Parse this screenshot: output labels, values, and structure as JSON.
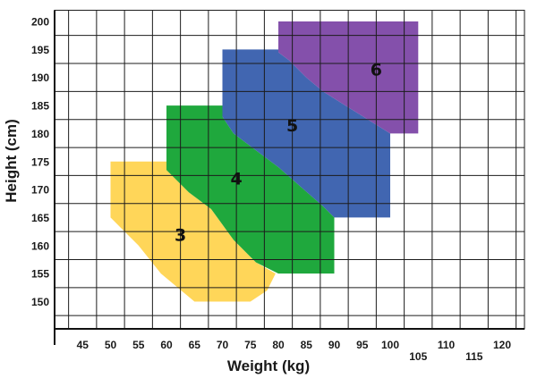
{
  "chart_data": {
    "type": "area",
    "title": "",
    "xlabel": "Weight (kg)",
    "ylabel": "Height (cm)",
    "xlim": [
      40,
      122.5
    ],
    "ylim": [
      145,
      202
    ],
    "grid": true,
    "x_ticks": [
      "45",
      "50",
      "55",
      "60",
      "65",
      "70",
      "75",
      "80",
      "85",
      "90",
      "95",
      "100",
      "105",
      "110",
      "115",
      "120"
    ],
    "y_ticks": [
      "150",
      "155",
      "160",
      "165",
      "170",
      "175",
      "180",
      "185",
      "190",
      "195",
      "200"
    ],
    "zones": [
      {
        "label": "3",
        "color": "#FFD659",
        "points": [
          [
            50,
            175
          ],
          [
            60,
            175
          ],
          [
            60,
            173.5
          ],
          [
            64,
            169.5
          ],
          [
            68,
            166.5
          ],
          [
            72,
            161
          ],
          [
            76,
            157
          ],
          [
            79.5,
            155
          ],
          [
            78,
            152
          ],
          [
            75,
            150
          ],
          [
            65,
            150
          ],
          [
            59,
            155
          ],
          [
            55,
            160
          ],
          [
            50,
            165
          ]
        ]
      },
      {
        "label": "4",
        "color": "#1FA83D",
        "points": [
          [
            60,
            185
          ],
          [
            70,
            185
          ],
          [
            70,
            183
          ],
          [
            72,
            180
          ],
          [
            76,
            177
          ],
          [
            80,
            174
          ],
          [
            84,
            170.5
          ],
          [
            88,
            167
          ],
          [
            90,
            165
          ],
          [
            90,
            155
          ],
          [
            80,
            155
          ],
          [
            76,
            157
          ],
          [
            72,
            161
          ],
          [
            68,
            166.5
          ],
          [
            64,
            169.5
          ],
          [
            60,
            173.5
          ]
        ]
      },
      {
        "label": "5",
        "color": "#4166B1",
        "points": [
          [
            70,
            195
          ],
          [
            80,
            195
          ],
          [
            80,
            194.5
          ],
          [
            82,
            193
          ],
          [
            85,
            190
          ],
          [
            88,
            187.5
          ],
          [
            92,
            185
          ],
          [
            96,
            182.5
          ],
          [
            100,
            180
          ],
          [
            100,
            165
          ],
          [
            90,
            165
          ],
          [
            88,
            167
          ],
          [
            84,
            170.5
          ],
          [
            80,
            174
          ],
          [
            76,
            177
          ],
          [
            72,
            180
          ],
          [
            70,
            183
          ]
        ]
      },
      {
        "label": "6",
        "color": "#8450AB",
        "points": [
          [
            80,
            200
          ],
          [
            105,
            200
          ],
          [
            105,
            180
          ],
          [
            100,
            180
          ],
          [
            96,
            182.5
          ],
          [
            92,
            185
          ],
          [
            88,
            187.5
          ],
          [
            85,
            190
          ],
          [
            82,
            193
          ],
          [
            80,
            194.5
          ]
        ]
      }
    ],
    "zone_label_positions": [
      [
        62.5,
        162
      ],
      [
        72.5,
        172
      ],
      [
        82.5,
        181.5
      ],
      [
        97.5,
        191.5
      ]
    ]
  }
}
